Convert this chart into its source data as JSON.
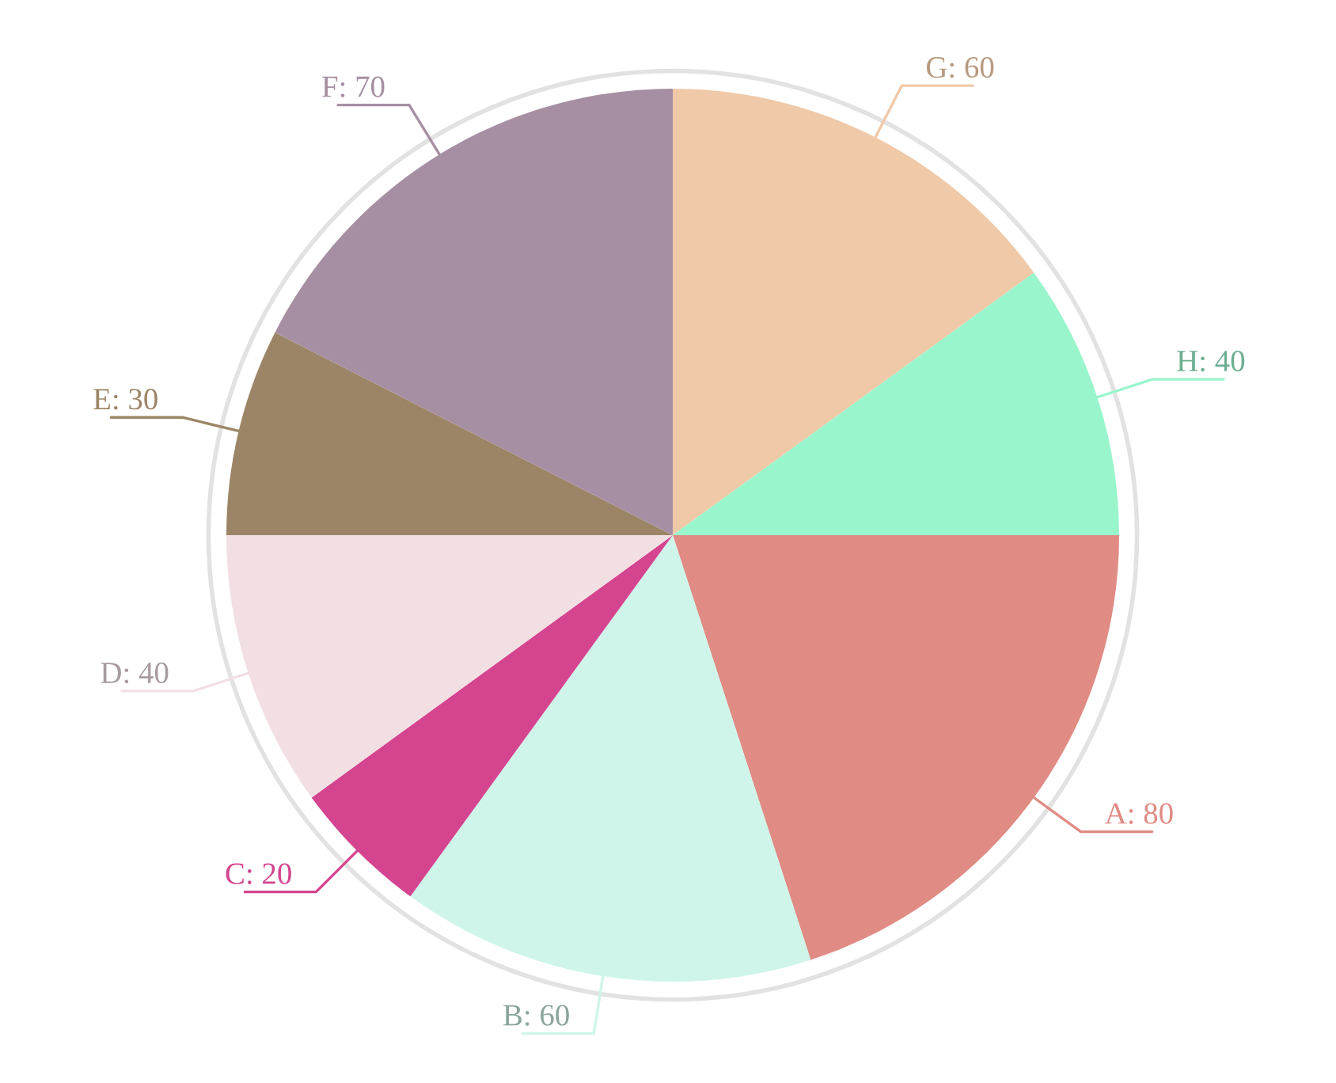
{
  "chart_data": {
    "type": "pie",
    "values": [
      80,
      60,
      20,
      40,
      30,
      70,
      60,
      40
    ],
    "colors": [
      "#e08b84",
      "#cff5ea",
      "#d4448f",
      "#f2dfe3",
      "#9c8566",
      "#a68fa3",
      "#f0c9a8",
      "#99f5cc"
    ],
    "value_labels": [
      "A: 80",
      "B: 60",
      "C: 20",
      "D: 40",
      "E: 30",
      "F: 70",
      "G: 60",
      "H: 40"
    ]
  }
}
